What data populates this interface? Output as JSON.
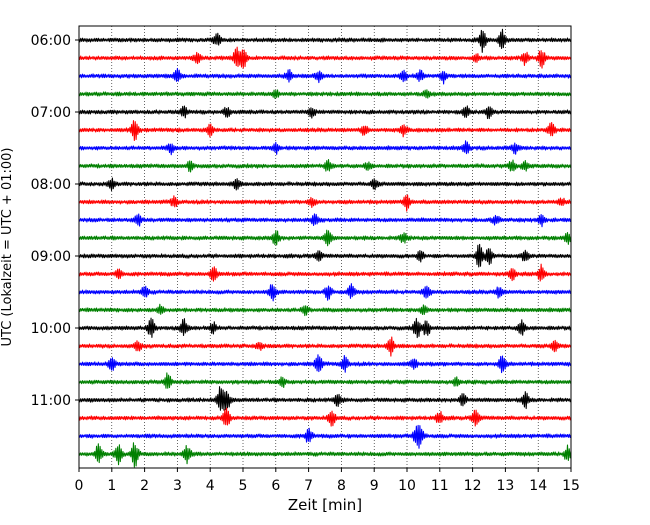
{
  "chart_data": {
    "type": "line",
    "title": "",
    "xlabel": "Zeit  [min]",
    "ylabel": "UTC (Lokalzeit = UTC + 01:00)",
    "xlim": [
      0,
      15
    ],
    "x_ticks": [
      0,
      1,
      2,
      3,
      4,
      5,
      6,
      7,
      8,
      9,
      10,
      11,
      12,
      13,
      14,
      15
    ],
    "x_tick_labels": [
      "0",
      "1",
      "2",
      "3",
      "4",
      "5",
      "6",
      "7",
      "8",
      "9",
      "10",
      "11",
      "12",
      "13",
      "14",
      "15"
    ],
    "trace_start_utc_minutes": 360,
    "trace_interval_minutes": 15,
    "trace_count": 24,
    "y_tick_labels": [
      "06:00",
      "07:00",
      "08:00",
      "09:00",
      "10:00",
      "11:00"
    ],
    "y_tick_trace_index": [
      0,
      4,
      8,
      12,
      16,
      20
    ],
    "color_cycle": [
      "#000000",
      "#ff0000",
      "#0000ff",
      "#008000"
    ],
    "vertical_grid": "dotted",
    "events": [
      {
        "trace": 0,
        "t": [
          4.2,
          12.3,
          12.9
        ],
        "amp": [
          0.5,
          0.9,
          0.8
        ]
      },
      {
        "trace": 1,
        "t": [
          3.6,
          4.8,
          5.0,
          12.1,
          13.6,
          14.1
        ],
        "amp": [
          0.4,
          0.8,
          1.0,
          0.3,
          0.5,
          0.7
        ]
      },
      {
        "trace": 2,
        "t": [
          3.0,
          6.4,
          7.3,
          9.9,
          10.4,
          11.1
        ],
        "amp": [
          0.6,
          0.4,
          0.4,
          0.4,
          0.4,
          0.5
        ]
      },
      {
        "trace": 3,
        "t": [
          6.0,
          10.6
        ],
        "amp": [
          0.3,
          0.3
        ]
      },
      {
        "trace": 4,
        "t": [
          3.2,
          4.5,
          7.1,
          11.8,
          12.5
        ],
        "amp": [
          0.4,
          0.4,
          0.4,
          0.5,
          0.5
        ]
      },
      {
        "trace": 5,
        "t": [
          1.7,
          4.0,
          8.7,
          9.9,
          14.4
        ],
        "amp": [
          0.8,
          0.5,
          0.4,
          0.5,
          0.6
        ]
      },
      {
        "trace": 6,
        "t": [
          2.8,
          6.0,
          11.8,
          13.3
        ],
        "amp": [
          0.4,
          0.4,
          0.5,
          0.4
        ]
      },
      {
        "trace": 7,
        "t": [
          3.4,
          7.6,
          8.8,
          13.2,
          13.6
        ],
        "amp": [
          0.4,
          0.5,
          0.3,
          0.4,
          0.4
        ]
      },
      {
        "trace": 8,
        "t": [
          1.0,
          4.8,
          9.0
        ],
        "amp": [
          0.4,
          0.4,
          0.4
        ]
      },
      {
        "trace": 9,
        "t": [
          2.9,
          7.1,
          10.0,
          14.7
        ],
        "amp": [
          0.4,
          0.4,
          0.6,
          0.3
        ]
      },
      {
        "trace": 10,
        "t": [
          1.8,
          7.2,
          12.7,
          14.1
        ],
        "amp": [
          0.5,
          0.4,
          0.4,
          0.4
        ]
      },
      {
        "trace": 11,
        "t": [
          6.0,
          7.6,
          9.9,
          14.9
        ],
        "amp": [
          0.6,
          0.7,
          0.4,
          0.4
        ]
      },
      {
        "trace": 12,
        "t": [
          7.3,
          10.4,
          12.2,
          12.5,
          13.6
        ],
        "amp": [
          0.4,
          0.4,
          0.9,
          0.7,
          0.4
        ]
      },
      {
        "trace": 13,
        "t": [
          1.2,
          4.1,
          13.2,
          14.1
        ],
        "amp": [
          0.4,
          0.6,
          0.5,
          0.7
        ]
      },
      {
        "trace": 14,
        "t": [
          2.0,
          5.9,
          7.6,
          8.3,
          10.6,
          12.8
        ],
        "amp": [
          0.5,
          0.7,
          0.6,
          0.6,
          0.6,
          0.4
        ]
      },
      {
        "trace": 15,
        "t": [
          2.5,
          6.9,
          10.5
        ],
        "amp": [
          0.4,
          0.4,
          0.4
        ]
      },
      {
        "trace": 16,
        "t": [
          2.2,
          3.2,
          4.1,
          10.3,
          10.6,
          13.5
        ],
        "amp": [
          0.7,
          0.7,
          0.4,
          0.8,
          0.7,
          0.6
        ]
      },
      {
        "trace": 17,
        "t": [
          1.8,
          5.5,
          9.5,
          14.5
        ],
        "amp": [
          0.4,
          0.3,
          0.7,
          0.4
        ]
      },
      {
        "trace": 18,
        "t": [
          1.0,
          7.3,
          8.1,
          10.2,
          12.9
        ],
        "amp": [
          0.5,
          0.8,
          0.6,
          0.4,
          0.7
        ]
      },
      {
        "trace": 19,
        "t": [
          2.7,
          6.2,
          11.5
        ],
        "amp": [
          0.7,
          0.4,
          0.3
        ]
      },
      {
        "trace": 20,
        "t": [
          4.3,
          4.5,
          7.9,
          11.7,
          13.6
        ],
        "amp": [
          1.0,
          0.9,
          0.5,
          0.5,
          0.6
        ]
      },
      {
        "trace": 21,
        "t": [
          4.5,
          7.7,
          11.0,
          12.1
        ],
        "amp": [
          0.8,
          0.7,
          0.5,
          0.7
        ]
      },
      {
        "trace": 22,
        "t": [
          7.0,
          10.3,
          10.4
        ],
        "amp": [
          0.6,
          0.8,
          0.7
        ]
      },
      {
        "trace": 23,
        "t": [
          0.6,
          1.2,
          1.7,
          3.3,
          14.9
        ],
        "amp": [
          0.9,
          0.8,
          1.0,
          0.7,
          0.6
        ]
      }
    ]
  }
}
